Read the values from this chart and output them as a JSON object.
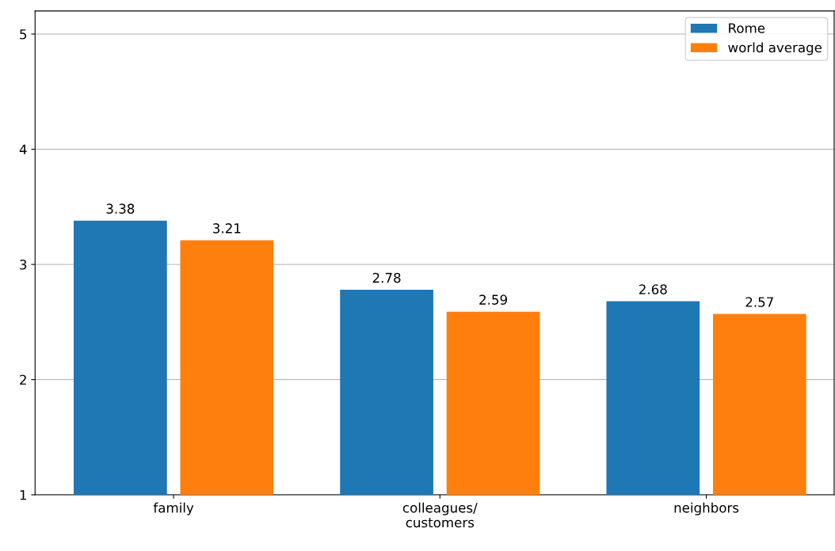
{
  "chart_data": {
    "type": "bar",
    "categories": [
      "family",
      "colleagues/\ncustomers",
      "neighbors"
    ],
    "series": [
      {
        "name": "Rome",
        "color": "#1f77b4",
        "values": [
          3.38,
          2.78,
          2.68
        ]
      },
      {
        "name": "world average",
        "color": "#ff7f0e",
        "values": [
          3.21,
          2.59,
          2.57
        ]
      }
    ],
    "ylim": [
      1,
      5.2
    ],
    "yticks": [
      1,
      2,
      3,
      4,
      5
    ],
    "grid": "y",
    "legend": "top right",
    "data_labels": true
  }
}
